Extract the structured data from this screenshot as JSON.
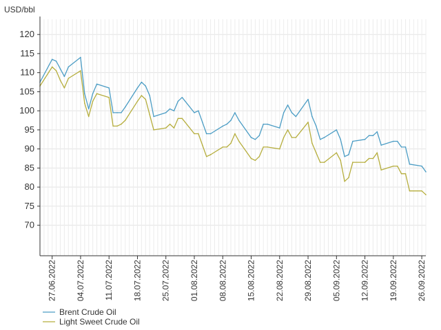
{
  "chart_data": {
    "type": "line",
    "unit_label": "USD/bbl",
    "title": "",
    "xlabel": "",
    "ylabel": "USD/bbl",
    "ylim": [
      62,
      124
    ],
    "yticks": [
      70,
      75,
      80,
      85,
      90,
      95,
      100,
      105,
      110,
      115,
      120
    ],
    "grid": true,
    "legend_position": "bottom-left",
    "x_tick_labels": [
      "27.06.2022",
      "04.07.2022",
      "11.07.2022",
      "18.07.2022",
      "25.07.2022",
      "01.08.2022",
      "08.08.2022",
      "15.08.2022",
      "22.08.2022",
      "29.08.2022",
      "05.09.2022",
      "12.09.2022",
      "19.09.2022",
      "26.09.2022"
    ],
    "x_tick_dates": [
      "2022-06-27",
      "2022-07-04",
      "2022-07-11",
      "2022-07-18",
      "2022-07-25",
      "2022-08-01",
      "2022-08-08",
      "2022-08-15",
      "2022-08-22",
      "2022-08-29",
      "2022-09-05",
      "2022-09-12",
      "2022-09-19",
      "2022-09-26"
    ],
    "xlim": [
      "2022-06-24",
      "2022-09-27"
    ],
    "series": [
      {
        "name": "Brent Crude Oil",
        "color": "#4a9cc4",
        "x": [
          "2022-06-24",
          "2022-06-27",
          "2022-06-28",
          "2022-06-29",
          "2022-06-30",
          "2022-07-01",
          "2022-07-04",
          "2022-07-05",
          "2022-07-06",
          "2022-07-07",
          "2022-07-08",
          "2022-07-11",
          "2022-07-12",
          "2022-07-13",
          "2022-07-14",
          "2022-07-15",
          "2022-07-18",
          "2022-07-19",
          "2022-07-20",
          "2022-07-21",
          "2022-07-22",
          "2022-07-25",
          "2022-07-26",
          "2022-07-27",
          "2022-07-28",
          "2022-07-29",
          "2022-08-01",
          "2022-08-02",
          "2022-08-03",
          "2022-08-04",
          "2022-08-05",
          "2022-08-08",
          "2022-08-09",
          "2022-08-10",
          "2022-08-11",
          "2022-08-12",
          "2022-08-15",
          "2022-08-16",
          "2022-08-17",
          "2022-08-18",
          "2022-08-19",
          "2022-08-22",
          "2022-08-23",
          "2022-08-24",
          "2022-08-25",
          "2022-08-26",
          "2022-08-29",
          "2022-08-30",
          "2022-08-31",
          "2022-09-01",
          "2022-09-02",
          "2022-09-05",
          "2022-09-06",
          "2022-09-07",
          "2022-09-08",
          "2022-09-09",
          "2022-09-12",
          "2022-09-13",
          "2022-09-14",
          "2022-09-15",
          "2022-09-16",
          "2022-09-19",
          "2022-09-20",
          "2022-09-21",
          "2022-09-22",
          "2022-09-23",
          "2022-09-26",
          "2022-09-27"
        ],
        "values": [
          107.5,
          113.5,
          113.0,
          111.0,
          109.0,
          111.5,
          114.0,
          104.5,
          100.5,
          104.5,
          107.0,
          106.0,
          99.5,
          99.5,
          99.5,
          101.0,
          106.0,
          107.5,
          106.5,
          104.0,
          98.5,
          99.5,
          100.5,
          100.0,
          102.5,
          103.5,
          99.5,
          100.0,
          97.0,
          94.0,
          94.0,
          96.0,
          96.5,
          97.5,
          99.5,
          97.5,
          93.0,
          92.5,
          93.5,
          96.5,
          96.5,
          95.5,
          99.5,
          101.5,
          99.5,
          98.5,
          103.0,
          98.5,
          96.0,
          92.5,
          93.0,
          95.0,
          92.5,
          88.0,
          88.5,
          92.0,
          92.5,
          93.5,
          93.5,
          94.5,
          91.0,
          92.0,
          92.0,
          90.5,
          90.5,
          86.0,
          85.5,
          84.0
        ]
      },
      {
        "name": "Light Sweet Crude Oil",
        "color": "#b5ad3c",
        "x": [
          "2022-06-24",
          "2022-06-27",
          "2022-06-28",
          "2022-06-29",
          "2022-06-30",
          "2022-07-01",
          "2022-07-04",
          "2022-07-05",
          "2022-07-06",
          "2022-07-07",
          "2022-07-08",
          "2022-07-11",
          "2022-07-12",
          "2022-07-13",
          "2022-07-14",
          "2022-07-15",
          "2022-07-18",
          "2022-07-19",
          "2022-07-20",
          "2022-07-21",
          "2022-07-22",
          "2022-07-25",
          "2022-07-26",
          "2022-07-27",
          "2022-07-28",
          "2022-07-29",
          "2022-08-01",
          "2022-08-02",
          "2022-08-03",
          "2022-08-04",
          "2022-08-05",
          "2022-08-08",
          "2022-08-09",
          "2022-08-10",
          "2022-08-11",
          "2022-08-12",
          "2022-08-15",
          "2022-08-16",
          "2022-08-17",
          "2022-08-18",
          "2022-08-19",
          "2022-08-22",
          "2022-08-23",
          "2022-08-24",
          "2022-08-25",
          "2022-08-26",
          "2022-08-29",
          "2022-08-30",
          "2022-08-31",
          "2022-09-01",
          "2022-09-02",
          "2022-09-05",
          "2022-09-06",
          "2022-09-07",
          "2022-09-08",
          "2022-09-09",
          "2022-09-12",
          "2022-09-13",
          "2022-09-14",
          "2022-09-15",
          "2022-09-16",
          "2022-09-19",
          "2022-09-20",
          "2022-09-21",
          "2022-09-22",
          "2022-09-23",
          "2022-09-26",
          "2022-09-27"
        ],
        "values": [
          106.5,
          111.5,
          110.5,
          108.0,
          106.0,
          108.5,
          110.5,
          102.0,
          98.5,
          102.5,
          104.5,
          103.5,
          96.0,
          96.0,
          96.5,
          97.5,
          102.5,
          104.0,
          103.0,
          99.0,
          95.0,
          95.5,
          96.5,
          95.5,
          98.0,
          98.0,
          94.0,
          94.0,
          91.0,
          88.0,
          88.5,
          90.5,
          90.5,
          91.5,
          94.0,
          92.0,
          87.5,
          87.0,
          88.0,
          90.5,
          90.5,
          90.0,
          93.0,
          95.0,
          93.0,
          93.0,
          97.0,
          91.5,
          89.0,
          86.5,
          86.5,
          89.0,
          87.0,
          81.5,
          82.5,
          86.5,
          86.5,
          87.5,
          87.5,
          89.0,
          84.5,
          85.5,
          85.5,
          83.5,
          83.5,
          79.0,
          79.0,
          78.0
        ]
      }
    ]
  }
}
